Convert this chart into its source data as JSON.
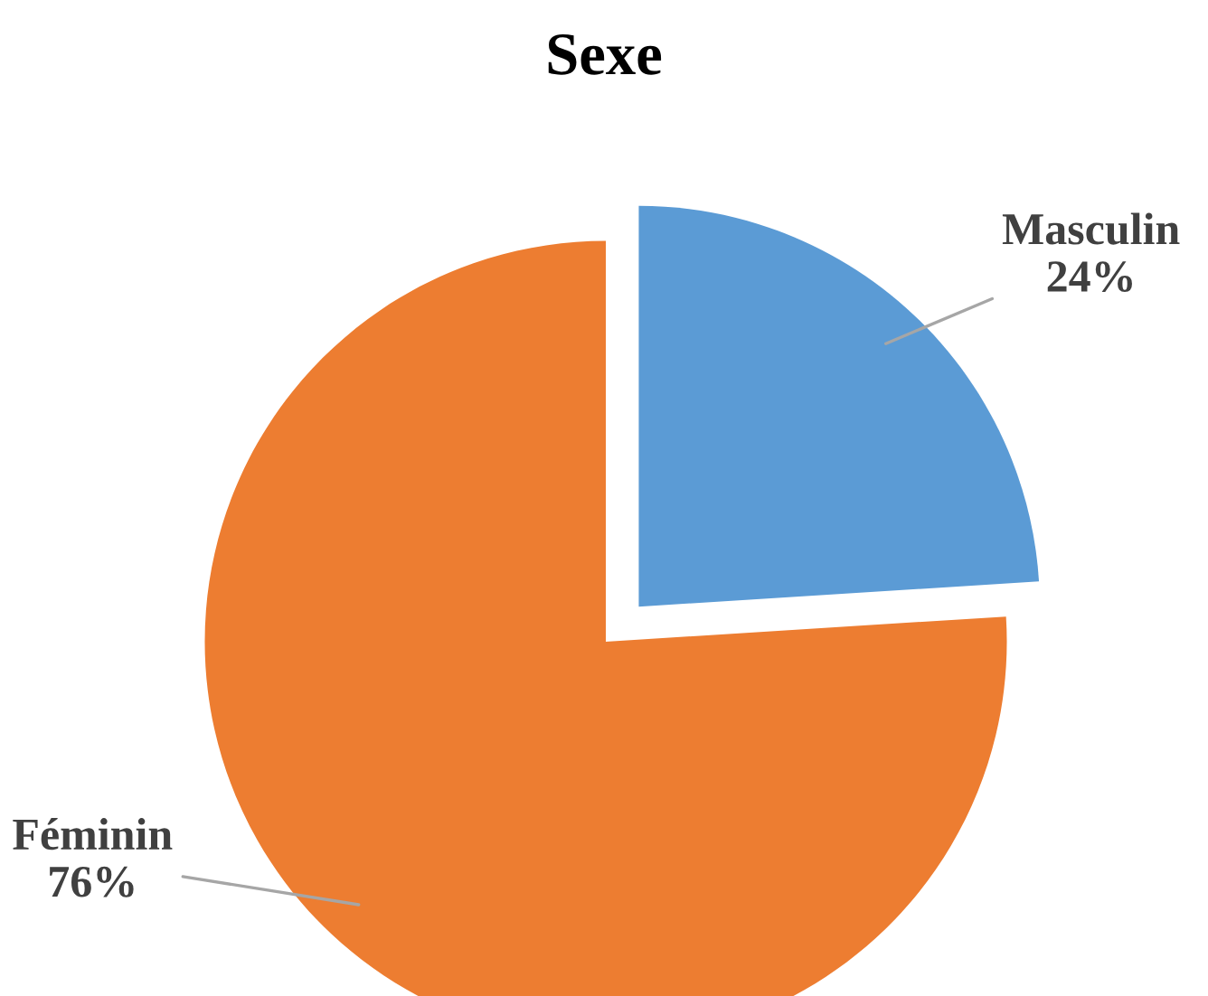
{
  "chart_data": {
    "type": "pie",
    "title": "Sexe",
    "categories": [
      "Masculin",
      "Féminin"
    ],
    "values": [
      24,
      76
    ],
    "value_labels": [
      "24%",
      "76%"
    ],
    "colors": [
      "#5b9bd5",
      "#ed7d31"
    ],
    "legend": false
  }
}
